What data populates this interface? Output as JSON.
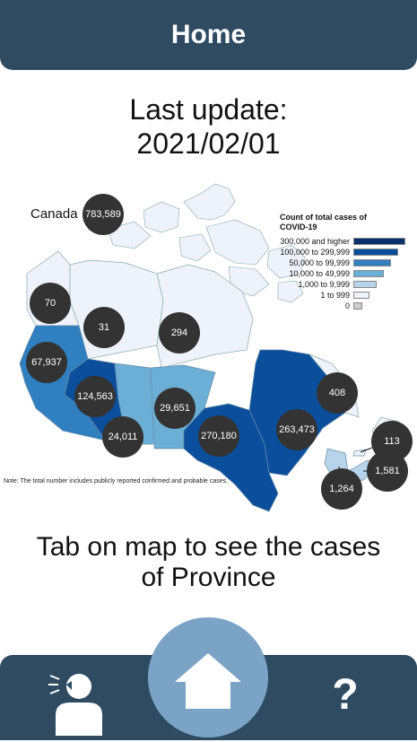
{
  "header": {
    "title": "Home"
  },
  "update": {
    "line1": "Last update:",
    "line2": "2021/02/01"
  },
  "map": {
    "canada_label": "Canada",
    "canada_total": "783,589",
    "provinces": [
      {
        "id": "yukon",
        "cases": "70"
      },
      {
        "id": "northwest-territories",
        "cases": "31"
      },
      {
        "id": "nunavut",
        "cases": "294"
      },
      {
        "id": "british-columbia",
        "cases": "67,937"
      },
      {
        "id": "alberta",
        "cases": "124,563"
      },
      {
        "id": "saskatchewan",
        "cases": "24,011"
      },
      {
        "id": "manitoba",
        "cases": "29,651"
      },
      {
        "id": "ontario",
        "cases": "270,180"
      },
      {
        "id": "quebec",
        "cases": "263,473"
      },
      {
        "id": "newfoundland-labrador",
        "cases": "408"
      },
      {
        "id": "prince-edward-island",
        "cases": "113"
      },
      {
        "id": "new-brunswick",
        "cases": "1,264"
      },
      {
        "id": "nova-scotia",
        "cases": "1,581"
      }
    ],
    "legend": {
      "title": "Count of total cases of COVID-19",
      "items": [
        {
          "label": "300,000 and higher",
          "color": "#08306b"
        },
        {
          "label": "100,000 to 299,999",
          "color": "#0b4f9c"
        },
        {
          "label": "50,000 to 99,999",
          "color": "#2f7fc1"
        },
        {
          "label": "10,000 to 49,999",
          "color": "#6baed6"
        },
        {
          "label": "1,000 to 9,999",
          "color": "#b7d4ea"
        },
        {
          "label": "1 to 999",
          "color": "#eef3fb"
        },
        {
          "label": "0",
          "color": "#cccccc"
        }
      ]
    },
    "note": "Note: The total number includes publicly reported confirmed and probable cases."
  },
  "instruction": {
    "line1": "Tab on map to see the cases",
    "line2": "of Province"
  },
  "footer": {
    "help_label": "?"
  }
}
